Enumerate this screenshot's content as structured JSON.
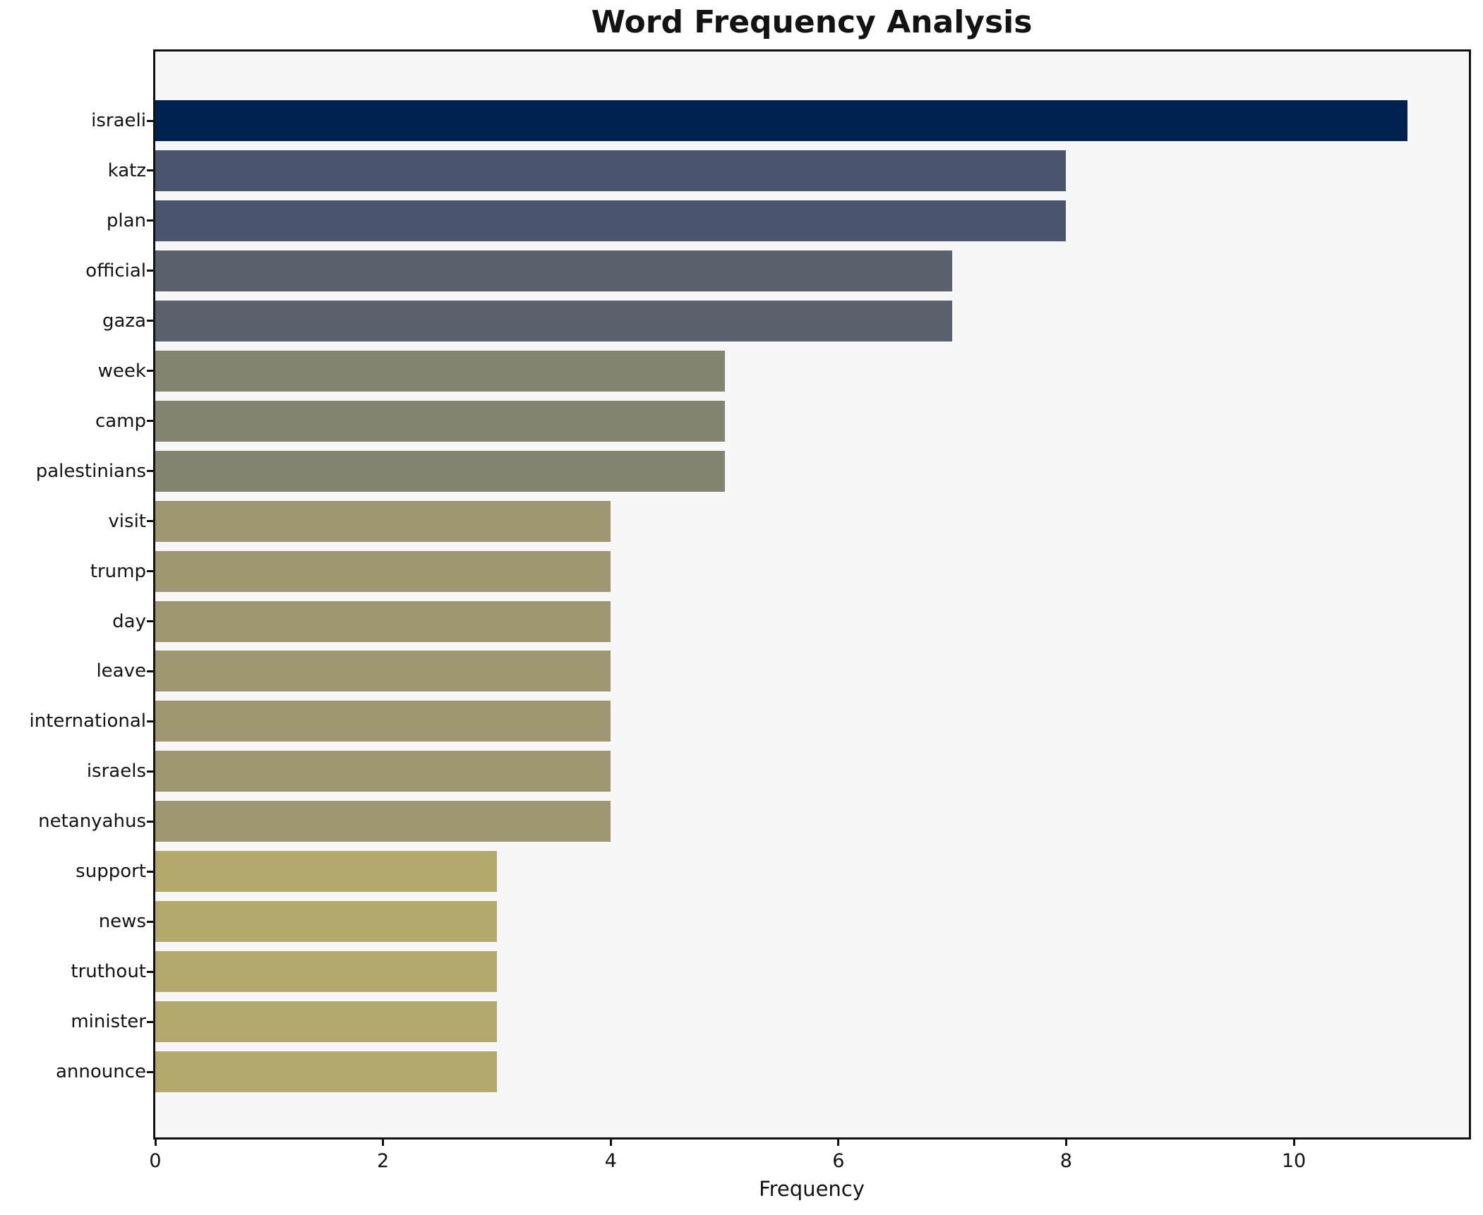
{
  "chart_data": {
    "type": "bar",
    "orientation": "horizontal",
    "title": "Word Frequency Analysis",
    "xlabel": "Frequency",
    "ylabel": "",
    "categories": [
      "israeli",
      "katz",
      "plan",
      "official",
      "gaza",
      "week",
      "camp",
      "palestinians",
      "visit",
      "trump",
      "day",
      "leave",
      "international",
      "israels",
      "netanyahus",
      "support",
      "news",
      "truthout",
      "minister",
      "announce"
    ],
    "values": [
      11,
      8,
      8,
      7,
      7,
      5,
      5,
      5,
      4,
      4,
      4,
      4,
      4,
      4,
      4,
      3,
      3,
      3,
      3,
      3
    ],
    "bar_colors": [
      "#002250",
      "#4a546e",
      "#4a546e",
      "#5c616e",
      "#5c616e",
      "#858470",
      "#858470",
      "#858470",
      "#9d9671",
      "#9d9671",
      "#9d9671",
      "#9d9671",
      "#9d9671",
      "#9d9671",
      "#9d9671",
      "#b4a96d",
      "#b4a96d",
      "#b4a96d",
      "#b4a96d",
      "#b4a96d"
    ],
    "xlim": [
      0,
      11.55
    ],
    "x_ticks": [
      0,
      2,
      4,
      6,
      8,
      10
    ],
    "grid": false,
    "legend_position": "none",
    "plot_bg": "#f7f7f8",
    "figure_bg": "#ffffff",
    "axis_color": "#111111",
    "text_color": "#131313"
  }
}
